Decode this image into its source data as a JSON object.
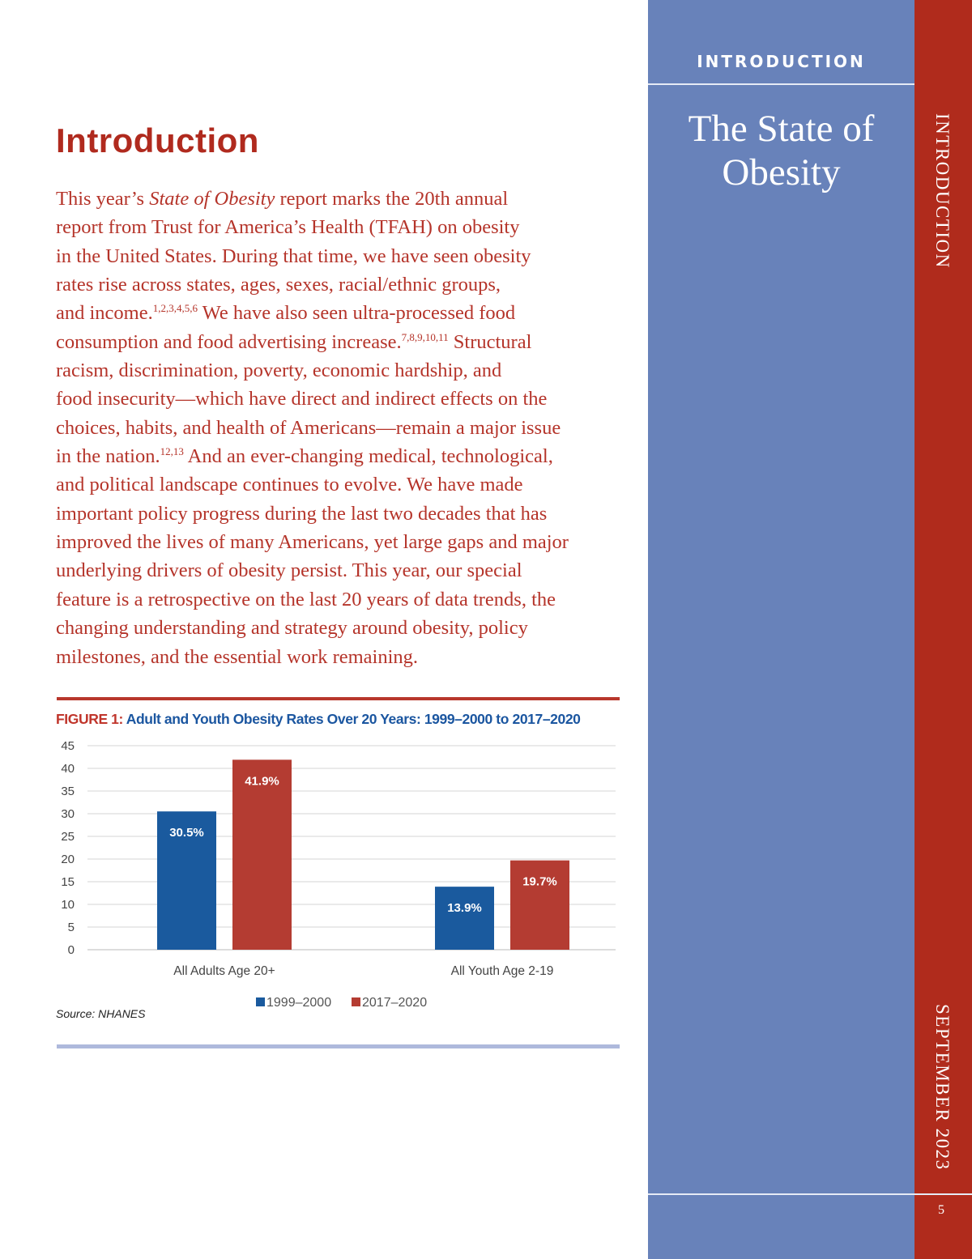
{
  "heading": "Introduction",
  "body_lines": [
    [
      {
        "t": "This year’s "
      },
      {
        "t": "State of Obesity",
        "i": true
      },
      {
        "t": " report marks the 20th annual"
      }
    ],
    [
      {
        "t": "report from Trust for America’s Health (TFAH) on obesity"
      }
    ],
    [
      {
        "t": "in the United States. During that time, we have seen obesity"
      }
    ],
    [
      {
        "t": "rates rise across states, ages, sexes, racial/ethnic groups,"
      }
    ],
    [
      {
        "t": "and income."
      },
      {
        "t": "1,2,3,4,5,6",
        "s": true
      },
      {
        "t": " We have also seen ultra-processed food"
      }
    ],
    [
      {
        "t": "consumption and food advertising increase."
      },
      {
        "t": "7,8,9,10,11",
        "s": true
      },
      {
        "t": " Structural"
      }
    ],
    [
      {
        "t": "racism, discrimination, poverty, economic hardship, and"
      }
    ],
    [
      {
        "t": "food insecurity—which have direct and indirect effects on the"
      }
    ],
    [
      {
        "t": "choices, habits, and health of Americans—remain a major issue"
      }
    ],
    [
      {
        "t": "in the nation."
      },
      {
        "t": "12,13",
        "s": true
      },
      {
        "t": " And an ever-changing medical, technological,"
      }
    ],
    [
      {
        "t": "and political landscape continues to evolve. We have made"
      }
    ],
    [
      {
        "t": "important policy progress during the last two decades that has"
      }
    ],
    [
      {
        "t": "improved the lives of many Americans, yet large gaps and major"
      }
    ],
    [
      {
        "t": "underlying drivers of obesity persist. This year, our special"
      }
    ],
    [
      {
        "t": "feature is a retrospective on the last 20 years of data trends, the"
      }
    ],
    [
      {
        "t": "changing understanding and strategy around obesity, policy"
      }
    ],
    [
      {
        "t": "milestones, and the essential work remaining."
      }
    ]
  ],
  "figure": {
    "label": "FIGURE 1:",
    "title": " Adult and Youth Obesity Rates Over 20 Years: 1999–2000 to 2017–2020",
    "source": "Source: NHANES"
  },
  "chart_data": {
    "type": "bar",
    "title": "Adult and Youth Obesity Rates Over 20 Years: 1999–2000 to 2017–2020",
    "categories": [
      "All Adults Age 20+",
      "All Youth Age 2-19"
    ],
    "series": [
      {
        "name": "1999–2000",
        "values": [
          30.5,
          13.9
        ],
        "labels": [
          "30.5%",
          "13.9%"
        ],
        "color": "#1a5a9e"
      },
      {
        "name": "2017–2020",
        "values": [
          41.9,
          19.7
        ],
        "labels": [
          "41.9%",
          "19.7%"
        ],
        "color": "#b43c32"
      }
    ],
    "ylim": [
      0,
      45
    ],
    "yticks": [
      0,
      5,
      10,
      15,
      20,
      25,
      30,
      35,
      40,
      45
    ],
    "grid": true,
    "legend": "bottom-center"
  },
  "sidebar": {
    "section": "INTRODUCTION",
    "title_line1": "The State of",
    "title_line2": "Obesity"
  },
  "tab": {
    "section": "INTRODUCTION",
    "date": "SEPTEMBER 2023",
    "page": "5"
  }
}
